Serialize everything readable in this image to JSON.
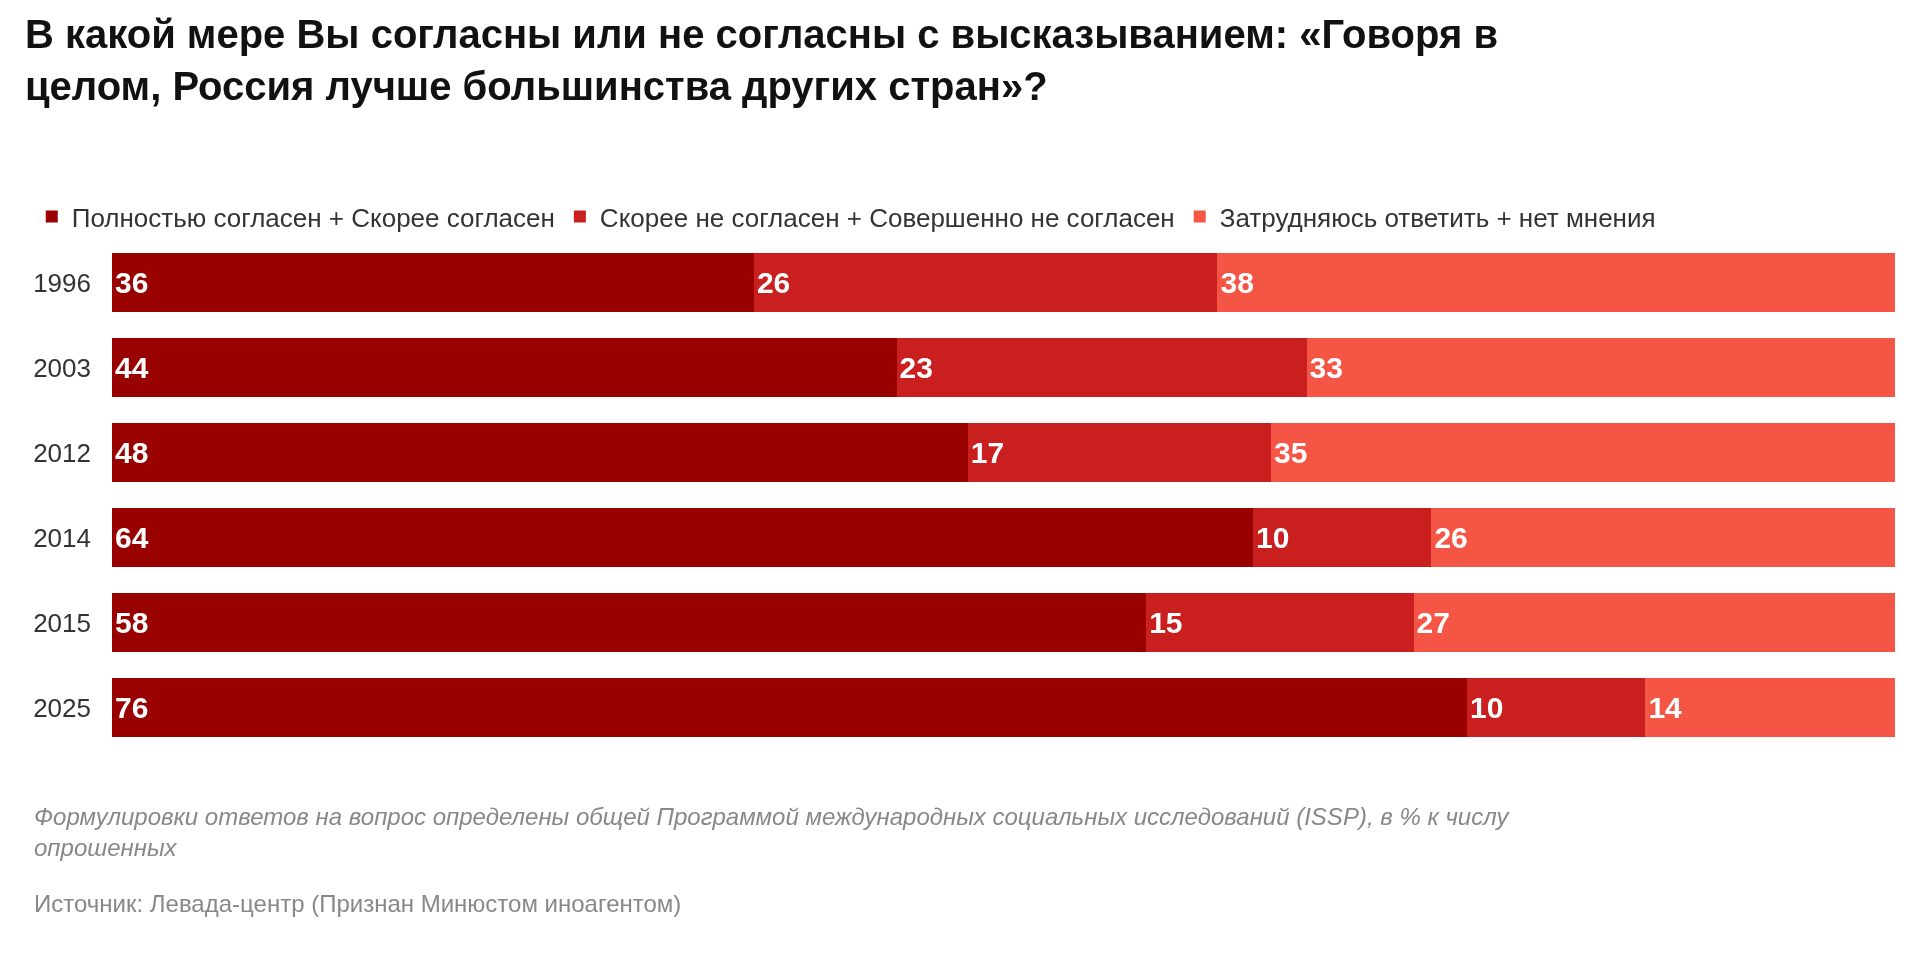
{
  "chart_data": {
    "type": "bar",
    "orientation": "horizontal",
    "stacked": true,
    "title": "В какой мере Вы согласны или не согласны с высказыванием: «Говоря в целом, Россия лучше большинства других стран»?",
    "categories": [
      "1996",
      "2003",
      "2012",
      "2014",
      "2015",
      "2025"
    ],
    "series": [
      {
        "name": "Полностью согласен + Скорее согласен",
        "color": "#990000",
        "values": [
          36,
          44,
          48,
          64,
          58,
          76
        ]
      },
      {
        "name": "Скорее не согласен + Совершенно не согласен",
        "color": "#c91f1f",
        "values": [
          26,
          23,
          17,
          10,
          15,
          10
        ]
      },
      {
        "name": "Затрудняюсь ответить + нет мнения",
        "color": "#f55545",
        "values": [
          38,
          33,
          35,
          26,
          27,
          14
        ]
      }
    ],
    "xlim": [
      0,
      100
    ],
    "tick_labels": "y",
    "data_labels": true,
    "legend": "top left",
    "annotations": [
      "Формулировки ответов на вопрос определены общей Программой международных социальных исследований (ISSP), в % к числу опрошенных",
      "Источник: Левада-центр (Признан Минюстом иноагентом)"
    ]
  }
}
